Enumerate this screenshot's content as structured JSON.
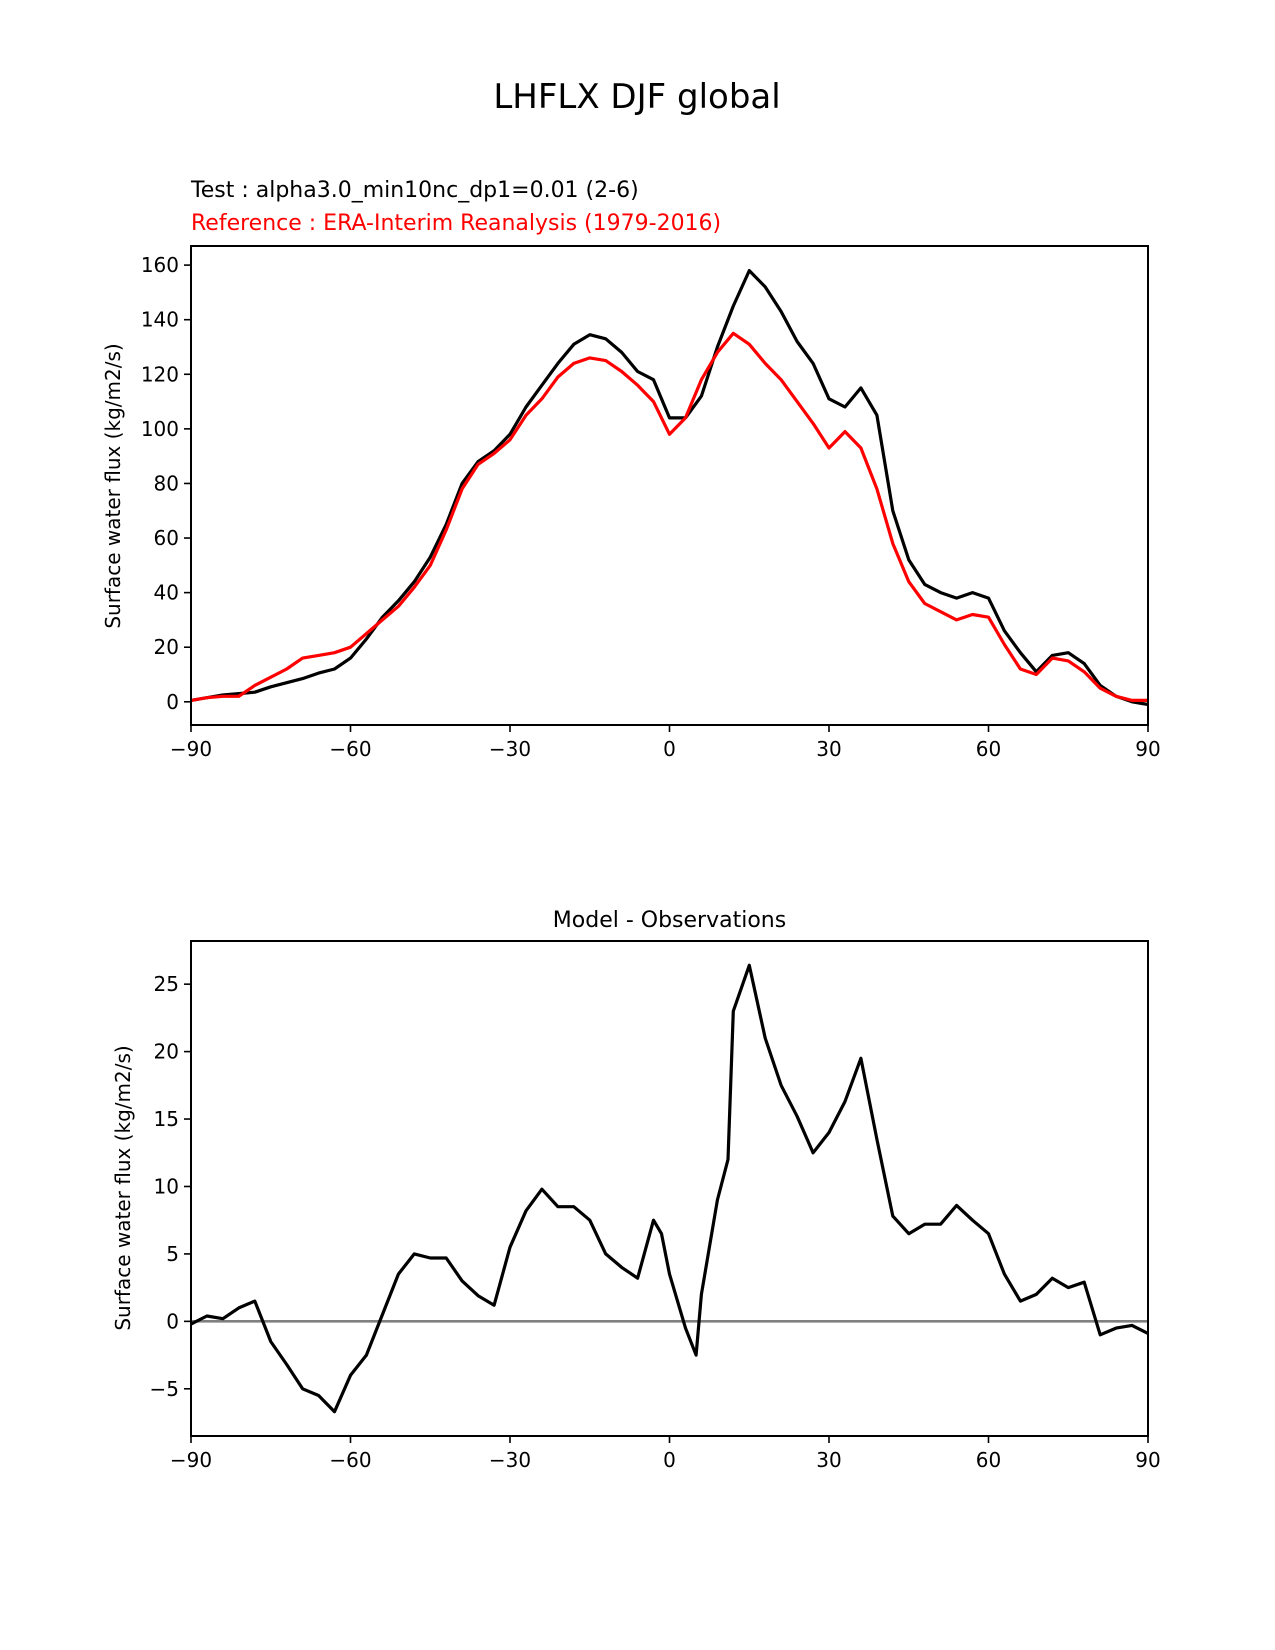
{
  "chart_data": [
    {
      "type": "line",
      "suptitle": "LHFLX DJF global",
      "subtitle_test": "Test : alpha3.0_min10nc_dp1=0.01 (2-6)",
      "subtitle_reference": "Reference : ERA-Interim Reanalysis (1979-2016)",
      "xlabel": "",
      "ylabel": "Surface water flux (kg/m2/s)",
      "xlim": [
        -90,
        90
      ],
      "ylim": [
        -8.5,
        167
      ],
      "xticks": [
        -90,
        -60,
        -30,
        0,
        30,
        60,
        90
      ],
      "xtick_labels": [
        "−90",
        "−60",
        "−30",
        "0",
        "30",
        "60",
        "90"
      ],
      "yticks": [
        0,
        20,
        40,
        60,
        80,
        100,
        120,
        140,
        160
      ],
      "ytick_labels": [
        "0",
        "20",
        "40",
        "60",
        "80",
        "100",
        "120",
        "140",
        "160"
      ],
      "grid": false,
      "x": [
        -90,
        -87,
        -84,
        -81,
        -78,
        -75,
        -72,
        -69,
        -66,
        -63,
        -60,
        -57,
        -54,
        -51,
        -48,
        -45,
        -42,
        -39,
        -36,
        -33,
        -30,
        -27,
        -24,
        -21,
        -18,
        -15,
        -12,
        -9,
        -6,
        -3,
        0,
        3,
        6,
        9,
        12,
        15,
        18,
        21,
        24,
        27,
        30,
        33,
        36,
        39,
        42,
        45,
        48,
        51,
        54,
        57,
        60,
        63,
        66,
        69,
        72,
        75,
        78,
        81,
        84,
        87,
        90
      ],
      "series": [
        {
          "name": "Test",
          "color": "#000000",
          "values": [
            0.5,
            1.5,
            2.5,
            3,
            3.5,
            5.5,
            7,
            8.5,
            10.5,
            12,
            16,
            23,
            31,
            37,
            44,
            53,
            65,
            80,
            88,
            92,
            98,
            108,
            116,
            124,
            131,
            134.5,
            133,
            128,
            121,
            118,
            104,
            104,
            112,
            130,
            145,
            158,
            152,
            143,
            132,
            124,
            111,
            108,
            115,
            105,
            70,
            52,
            43,
            40,
            38,
            40,
            38,
            26,
            18,
            11,
            17,
            18,
            14,
            6,
            2,
            0,
            -1
          ]
        },
        {
          "name": "Reference",
          "color": "#ff0000",
          "values": [
            0.5,
            1.5,
            2,
            2,
            6,
            9,
            12,
            16,
            17,
            18,
            20,
            25,
            30,
            35,
            42,
            50,
            63,
            78,
            87,
            91,
            96,
            105,
            111,
            119,
            124,
            126,
            125,
            121,
            116,
            110,
            98,
            104,
            118,
            128,
            135,
            131,
            124,
            118,
            110,
            102,
            93,
            99,
            93,
            78,
            58,
            44,
            36,
            33,
            30,
            32,
            31,
            21,
            12,
            10,
            16,
            15,
            11,
            5,
            2,
            0.5,
            0.5
          ]
        }
      ]
    },
    {
      "type": "line",
      "title": "Model - Observations",
      "xlabel": "",
      "ylabel": "Surface water flux (kg/m2/s)",
      "xlim": [
        -90,
        90
      ],
      "ylim": [
        -8.5,
        28.2
      ],
      "xticks": [
        -90,
        -60,
        -30,
        0,
        30,
        60,
        90
      ],
      "xtick_labels": [
        "−90",
        "−60",
        "−30",
        "0",
        "30",
        "60",
        "90"
      ],
      "yticks": [
        -5,
        0,
        5,
        10,
        15,
        20,
        25
      ],
      "ytick_labels": [
        "−5",
        "0",
        "5",
        "10",
        "15",
        "20",
        "25"
      ],
      "grid": false,
      "zero_line_color": "#808080",
      "x": [
        -90,
        -87,
        -84,
        -81,
        -78,
        -75,
        -72,
        -69,
        -66,
        -63,
        -60,
        -57,
        -54,
        -51,
        -48,
        -45,
        -42,
        -39,
        -36,
        -33,
        -30,
        -27,
        -24,
        -21,
        -18,
        -15,
        -12,
        -9,
        -6,
        -3,
        -1.5,
        0,
        3,
        5,
        6,
        9,
        11,
        12,
        15,
        18,
        21,
        24,
        27,
        30,
        33,
        36,
        39,
        42,
        45,
        48,
        51,
        54,
        57,
        60,
        63,
        66,
        69,
        72,
        75,
        78,
        81,
        84,
        87,
        90
      ],
      "series": [
        {
          "name": "Model - Observations",
          "color": "#000000",
          "values": [
            -0.2,
            0.4,
            0.2,
            1.0,
            1.5,
            -1.5,
            -3.2,
            -5,
            -5.5,
            -6.7,
            -4,
            -2.5,
            0.5,
            3.5,
            5.0,
            4.7,
            4.7,
            3.0,
            1.9,
            1.2,
            5.5,
            8.2,
            9.8,
            8.5,
            8.5,
            7.5,
            5.0,
            4.0,
            3.2,
            7.5,
            6.5,
            3.5,
            -0.5,
            -2.5,
            2,
            9,
            12,
            23,
            26.4,
            21,
            17.5,
            15.2,
            12.5,
            14,
            16.3,
            19.5,
            13.5,
            7.8,
            6.5,
            7.2,
            7.2,
            8.6,
            7.5,
            6.5,
            3.5,
            1.5,
            2.0,
            3.2,
            2.5,
            2.9,
            -1,
            -0.5,
            -0.3,
            -0.9
          ]
        }
      ]
    }
  ]
}
